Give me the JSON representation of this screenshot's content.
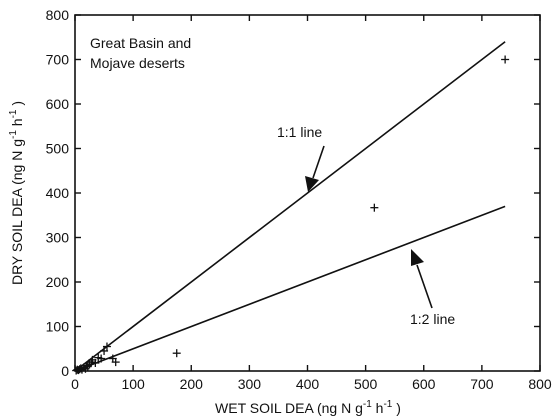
{
  "chart_data": {
    "type": "scatter",
    "title": "",
    "xlabel": "WET SOIL DEA  (ng N g",
    "xlabel_sup1": "-1",
    "xlabel_mid": " h",
    "xlabel_sup2": "-1",
    "xlabel_end": " )",
    "ylabel": "DRY SOIL DEA  (ng N g",
    "ylabel_sup1": "-1",
    "ylabel_mid": " h",
    "ylabel_sup2": "-1",
    "ylabel_end": " )",
    "xlim": [
      0,
      800
    ],
    "ylim": [
      0,
      800
    ],
    "x_ticks": [
      0,
      100,
      200,
      300,
      400,
      500,
      600,
      700,
      800
    ],
    "y_ticks": [
      0,
      100,
      200,
      300,
      400,
      500,
      600,
      700,
      800
    ],
    "grid": false,
    "annotation_lines": [
      "Great Basin and",
      "Mojave deserts"
    ],
    "reference_lines": [
      {
        "label": "1:1 line",
        "slope": 1,
        "x_end": 740
      },
      {
        "label": "1:2 line",
        "slope": 0.5,
        "x_end": 740
      }
    ],
    "points": [
      {
        "x": 2,
        "y": 1
      },
      {
        "x": 4,
        "y": 3
      },
      {
        "x": 6,
        "y": 2
      },
      {
        "x": 8,
        "y": 4
      },
      {
        "x": 10,
        "y": 6
      },
      {
        "x": 12,
        "y": 3
      },
      {
        "x": 15,
        "y": 8
      },
      {
        "x": 18,
        "y": 5
      },
      {
        "x": 20,
        "y": 12
      },
      {
        "x": 22,
        "y": 10
      },
      {
        "x": 25,
        "y": 15
      },
      {
        "x": 28,
        "y": 20
      },
      {
        "x": 30,
        "y": 25
      },
      {
        "x": 35,
        "y": 18
      },
      {
        "x": 40,
        "y": 30
      },
      {
        "x": 45,
        "y": 28
      },
      {
        "x": 50,
        "y": 45
      },
      {
        "x": 55,
        "y": 55
      },
      {
        "x": 65,
        "y": 28
      },
      {
        "x": 70,
        "y": 20
      },
      {
        "x": 175,
        "y": 40
      },
      {
        "x": 515,
        "y": 367
      },
      {
        "x": 740,
        "y": 700
      }
    ]
  }
}
